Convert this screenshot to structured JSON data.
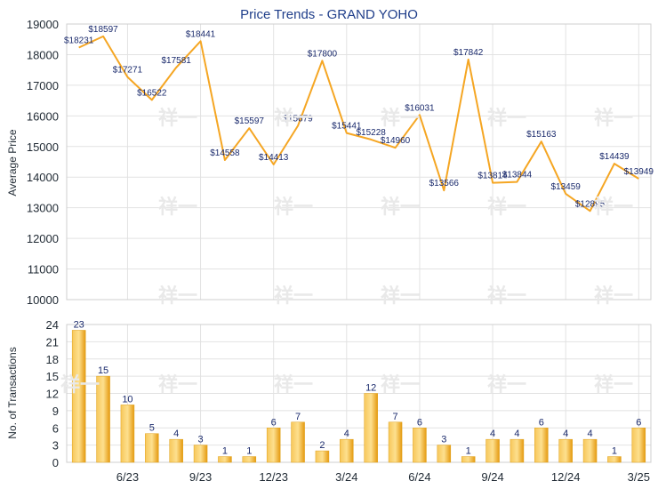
{
  "chart_data": [
    {
      "type": "line",
      "title": "Price Trends - GRAND YOHO",
      "ylabel": "Average Price",
      "ylim": [
        10000,
        19000
      ],
      "yticks": [
        10000,
        11000,
        12000,
        13000,
        14000,
        15000,
        16000,
        17000,
        18000,
        19000
      ],
      "grid": true,
      "color": "#f5a623",
      "series": [
        {
          "values": [
            18231,
            18597,
            17271,
            16522,
            17581,
            18441,
            14558,
            15597,
            14413,
            15679,
            17800,
            15441,
            15228,
            14960,
            16031,
            13566,
            17842,
            13814,
            13844,
            15163,
            13459,
            12895,
            14439,
            13949
          ],
          "labels": [
            "$18231",
            "$18597",
            "$17271",
            "$16522",
            "$17581",
            "$18441",
            "$14558",
            "$15597",
            "$14413",
            "$15679",
            "$17800",
            "$15441",
            "$15228",
            "$14960",
            "$16031",
            "$13566",
            "$17842",
            "$13814",
            "$13844",
            "$15163",
            "$13459",
            "$12895",
            "$14439",
            "$13949"
          ]
        }
      ]
    },
    {
      "type": "bar",
      "ylabel": "No. of Transactions",
      "ylim": [
        0,
        24
      ],
      "yticks": [
        0,
        3,
        6,
        9,
        12,
        15,
        18,
        21,
        24
      ],
      "grid": true,
      "color": "#f5b21c",
      "xtick_labels": [
        "6/23",
        "9/23",
        "12/23",
        "3/24",
        "6/24",
        "9/24",
        "12/24",
        "3/25"
      ],
      "xtick_positions": [
        2.5,
        5.5,
        8.5,
        11.5,
        14.5,
        17.5,
        20.5,
        23.5
      ],
      "values": [
        23,
        15,
        10,
        5,
        4,
        3,
        1,
        1,
        6,
        7,
        2,
        4,
        12,
        7,
        6,
        3,
        1,
        4,
        4,
        6,
        4,
        4,
        1,
        6
      ]
    }
  ],
  "watermark": "祥一"
}
